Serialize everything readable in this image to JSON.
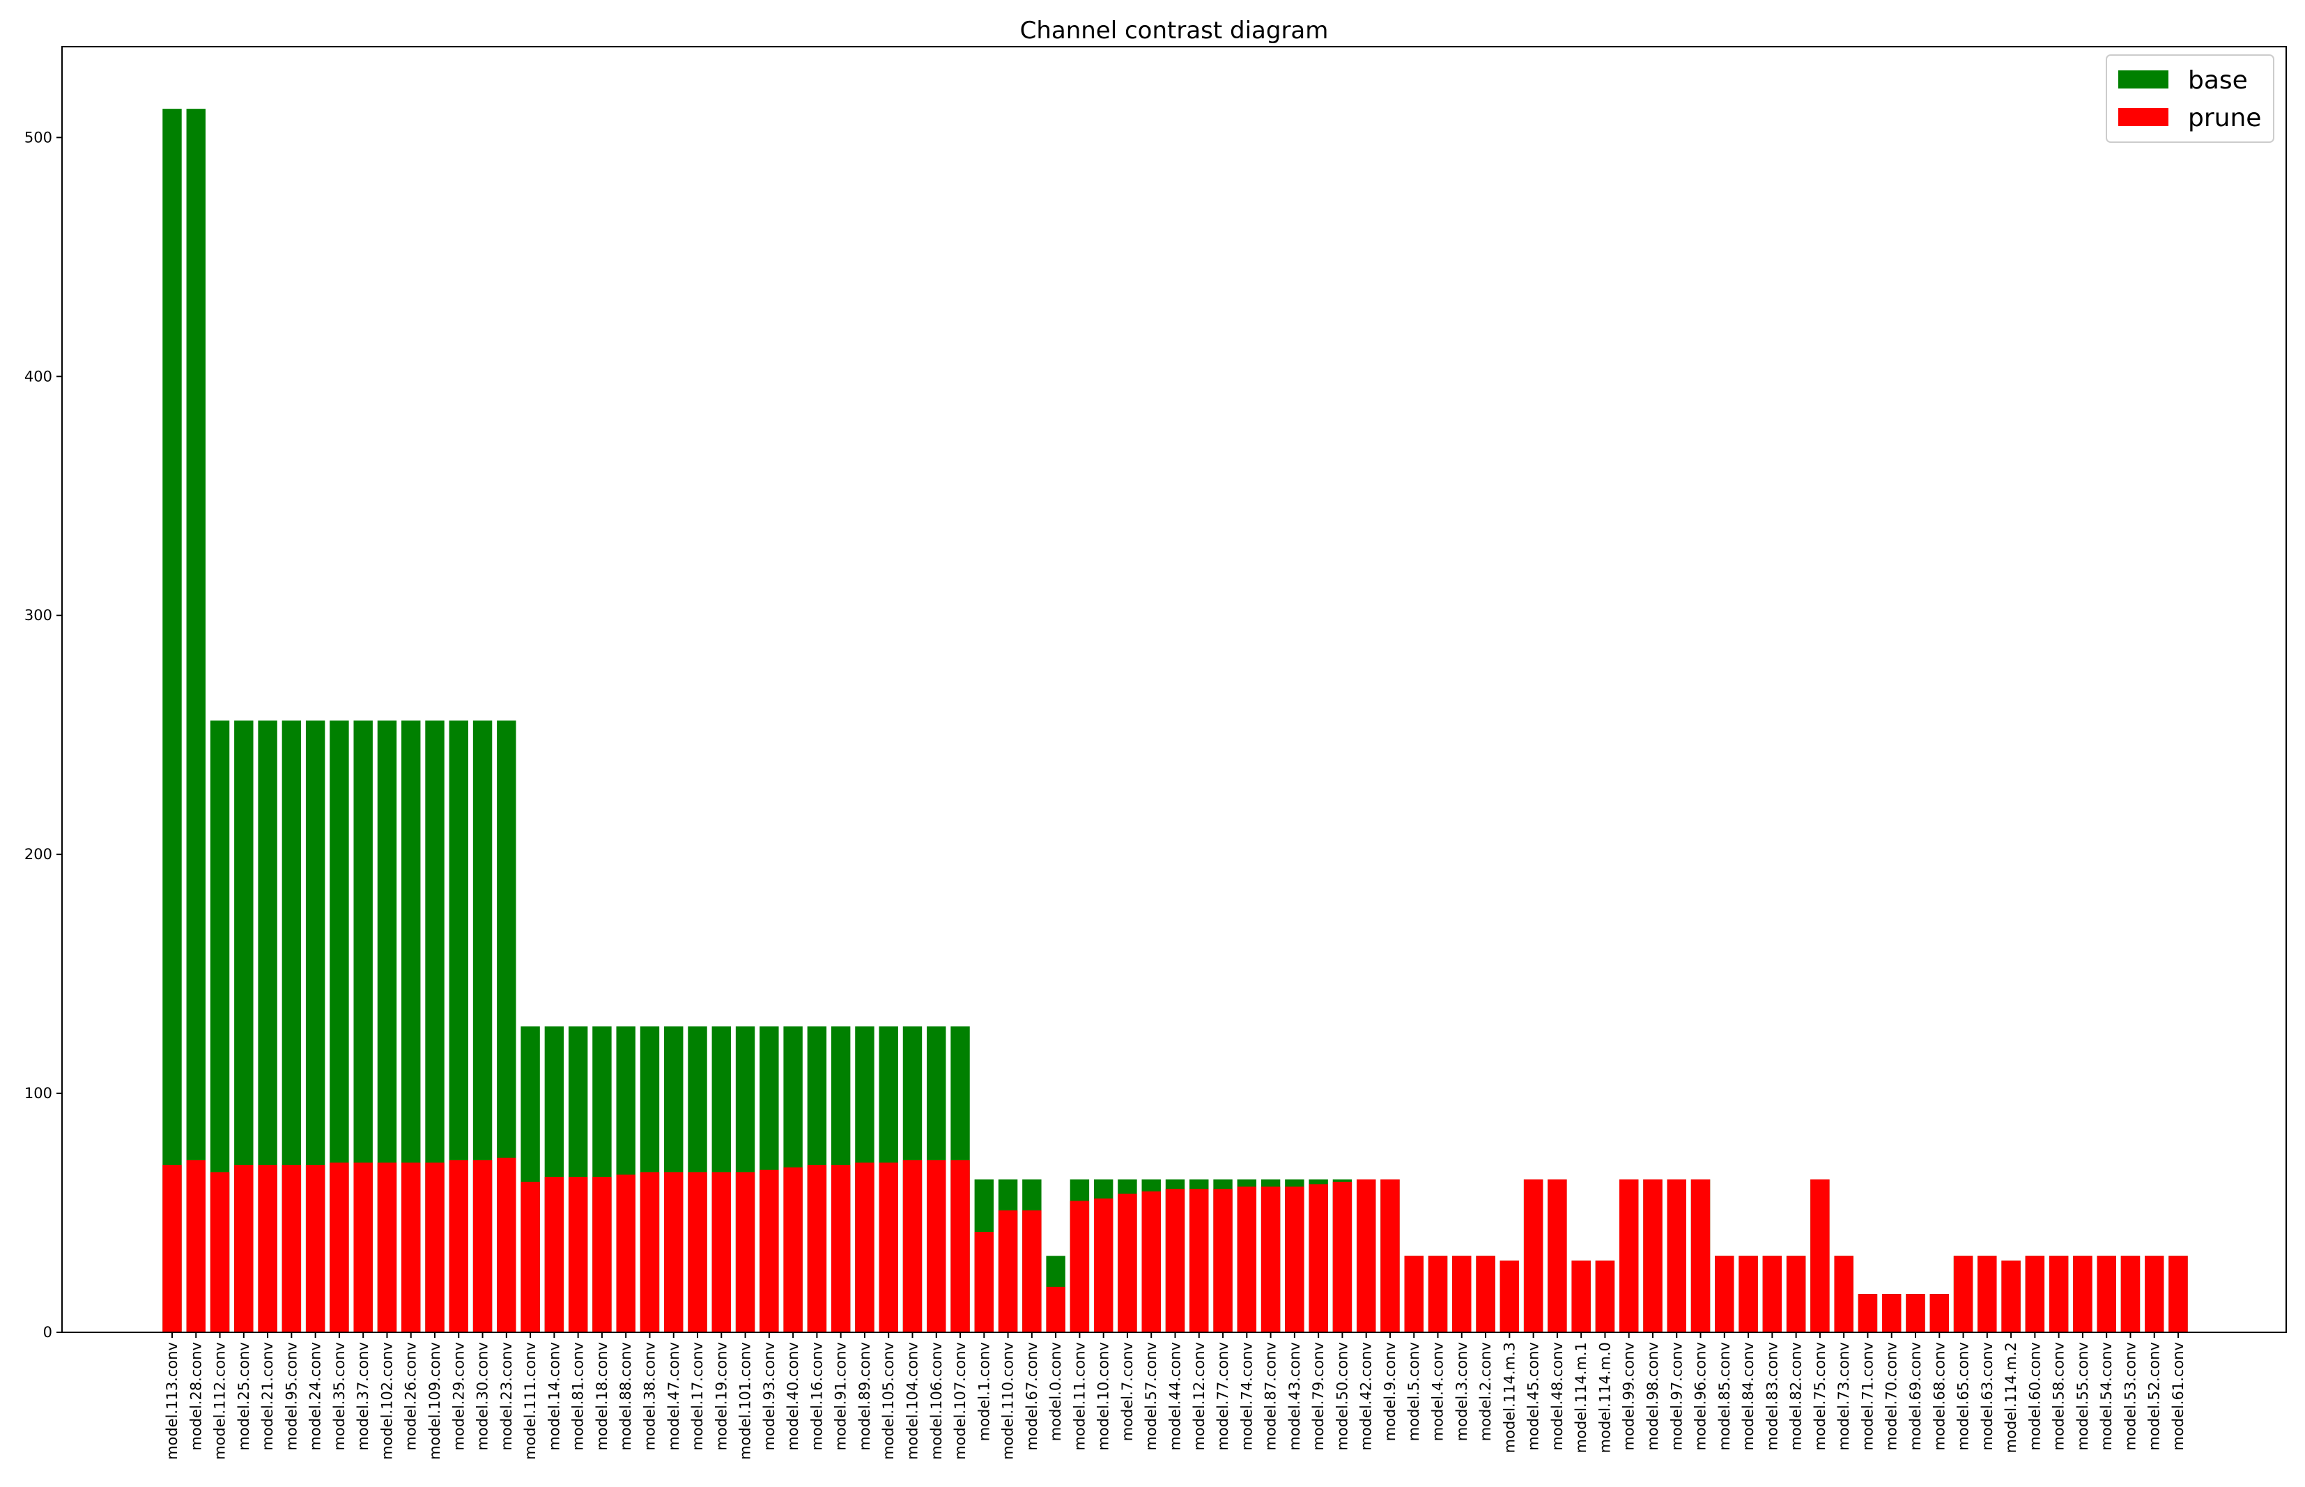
{
  "chart_data": {
    "type": "bar",
    "title": "Channel contrast diagram",
    "xlabel": "",
    "ylabel": "",
    "ylim": [
      0,
      538
    ],
    "yticks": [
      0,
      100,
      200,
      300,
      400,
      500
    ],
    "grid": false,
    "legend_position": "top-right",
    "categories": [
      "model.113.conv",
      "model.28.conv",
      "model.112.conv",
      "model.25.conv",
      "model.21.conv",
      "model.95.conv",
      "model.24.conv",
      "model.35.conv",
      "model.37.conv",
      "model.102.conv",
      "model.26.conv",
      "model.109.conv",
      "model.29.conv",
      "model.30.conv",
      "model.23.conv",
      "model.111.conv",
      "model.14.conv",
      "model.81.conv",
      "model.18.conv",
      "model.88.conv",
      "model.38.conv",
      "model.47.conv",
      "model.17.conv",
      "model.19.conv",
      "model.101.conv",
      "model.93.conv",
      "model.40.conv",
      "model.16.conv",
      "model.91.conv",
      "model.89.conv",
      "model.105.conv",
      "model.104.conv",
      "model.106.conv",
      "model.107.conv",
      "model.1.conv",
      "model.110.conv",
      "model.67.conv",
      "model.0.conv",
      "model.11.conv",
      "model.10.conv",
      "model.7.conv",
      "model.57.conv",
      "model.44.conv",
      "model.12.conv",
      "model.77.conv",
      "model.74.conv",
      "model.87.conv",
      "model.43.conv",
      "model.79.conv",
      "model.50.conv",
      "model.42.conv",
      "model.9.conv",
      "model.5.conv",
      "model.4.conv",
      "model.3.conv",
      "model.2.conv",
      "model.114.m.3",
      "model.45.conv",
      "model.48.conv",
      "model.114.m.1",
      "model.114.m.0",
      "model.99.conv",
      "model.98.conv",
      "model.97.conv",
      "model.96.conv",
      "model.85.conv",
      "model.84.conv",
      "model.83.conv",
      "model.82.conv",
      "model.75.conv",
      "model.73.conv",
      "model.71.conv",
      "model.70.conv",
      "model.69.conv",
      "model.68.conv",
      "model.65.conv",
      "model.63.conv",
      "model.114.m.2",
      "model.60.conv",
      "model.58.conv",
      "model.55.conv",
      "model.54.conv",
      "model.53.conv",
      "model.52.conv",
      "model.61.conv"
    ],
    "series": [
      {
        "name": "base",
        "color": "#008000",
        "values": [
          512,
          512,
          256,
          256,
          256,
          256,
          256,
          256,
          256,
          256,
          256,
          256,
          256,
          256,
          256,
          128,
          128,
          128,
          128,
          128,
          128,
          128,
          128,
          128,
          128,
          128,
          128,
          128,
          128,
          128,
          128,
          128,
          128,
          128,
          64,
          64,
          64,
          32,
          64,
          64,
          64,
          64,
          64,
          64,
          64,
          64,
          64,
          64,
          64,
          64,
          64,
          64,
          32,
          32,
          32,
          32,
          30,
          64,
          64,
          30,
          30,
          64,
          64,
          64,
          64,
          32,
          32,
          32,
          32,
          64,
          32,
          16,
          16,
          16,
          16,
          32,
          32,
          30,
          32,
          32,
          32,
          32,
          32,
          32,
          32
        ]
      },
      {
        "name": "prune",
        "color": "#ff0000",
        "values": [
          70,
          72,
          67,
          70,
          70,
          70,
          70,
          71,
          71,
          71,
          71,
          71,
          72,
          72,
          73,
          63,
          65,
          65,
          65,
          66,
          67,
          67,
          67,
          67,
          67,
          68,
          69,
          70,
          70,
          71,
          71,
          72,
          72,
          72,
          42,
          51,
          51,
          19,
          55,
          56,
          58,
          59,
          60,
          60,
          60,
          61,
          61,
          61,
          62,
          63,
          64,
          64,
          32,
          32,
          32,
          32,
          30,
          64,
          64,
          30,
          30,
          64,
          64,
          64,
          64,
          32,
          32,
          32,
          32,
          64,
          32,
          16,
          16,
          16,
          16,
          32,
          32,
          30,
          32,
          32,
          32,
          32,
          32,
          32,
          32
        ]
      }
    ]
  }
}
